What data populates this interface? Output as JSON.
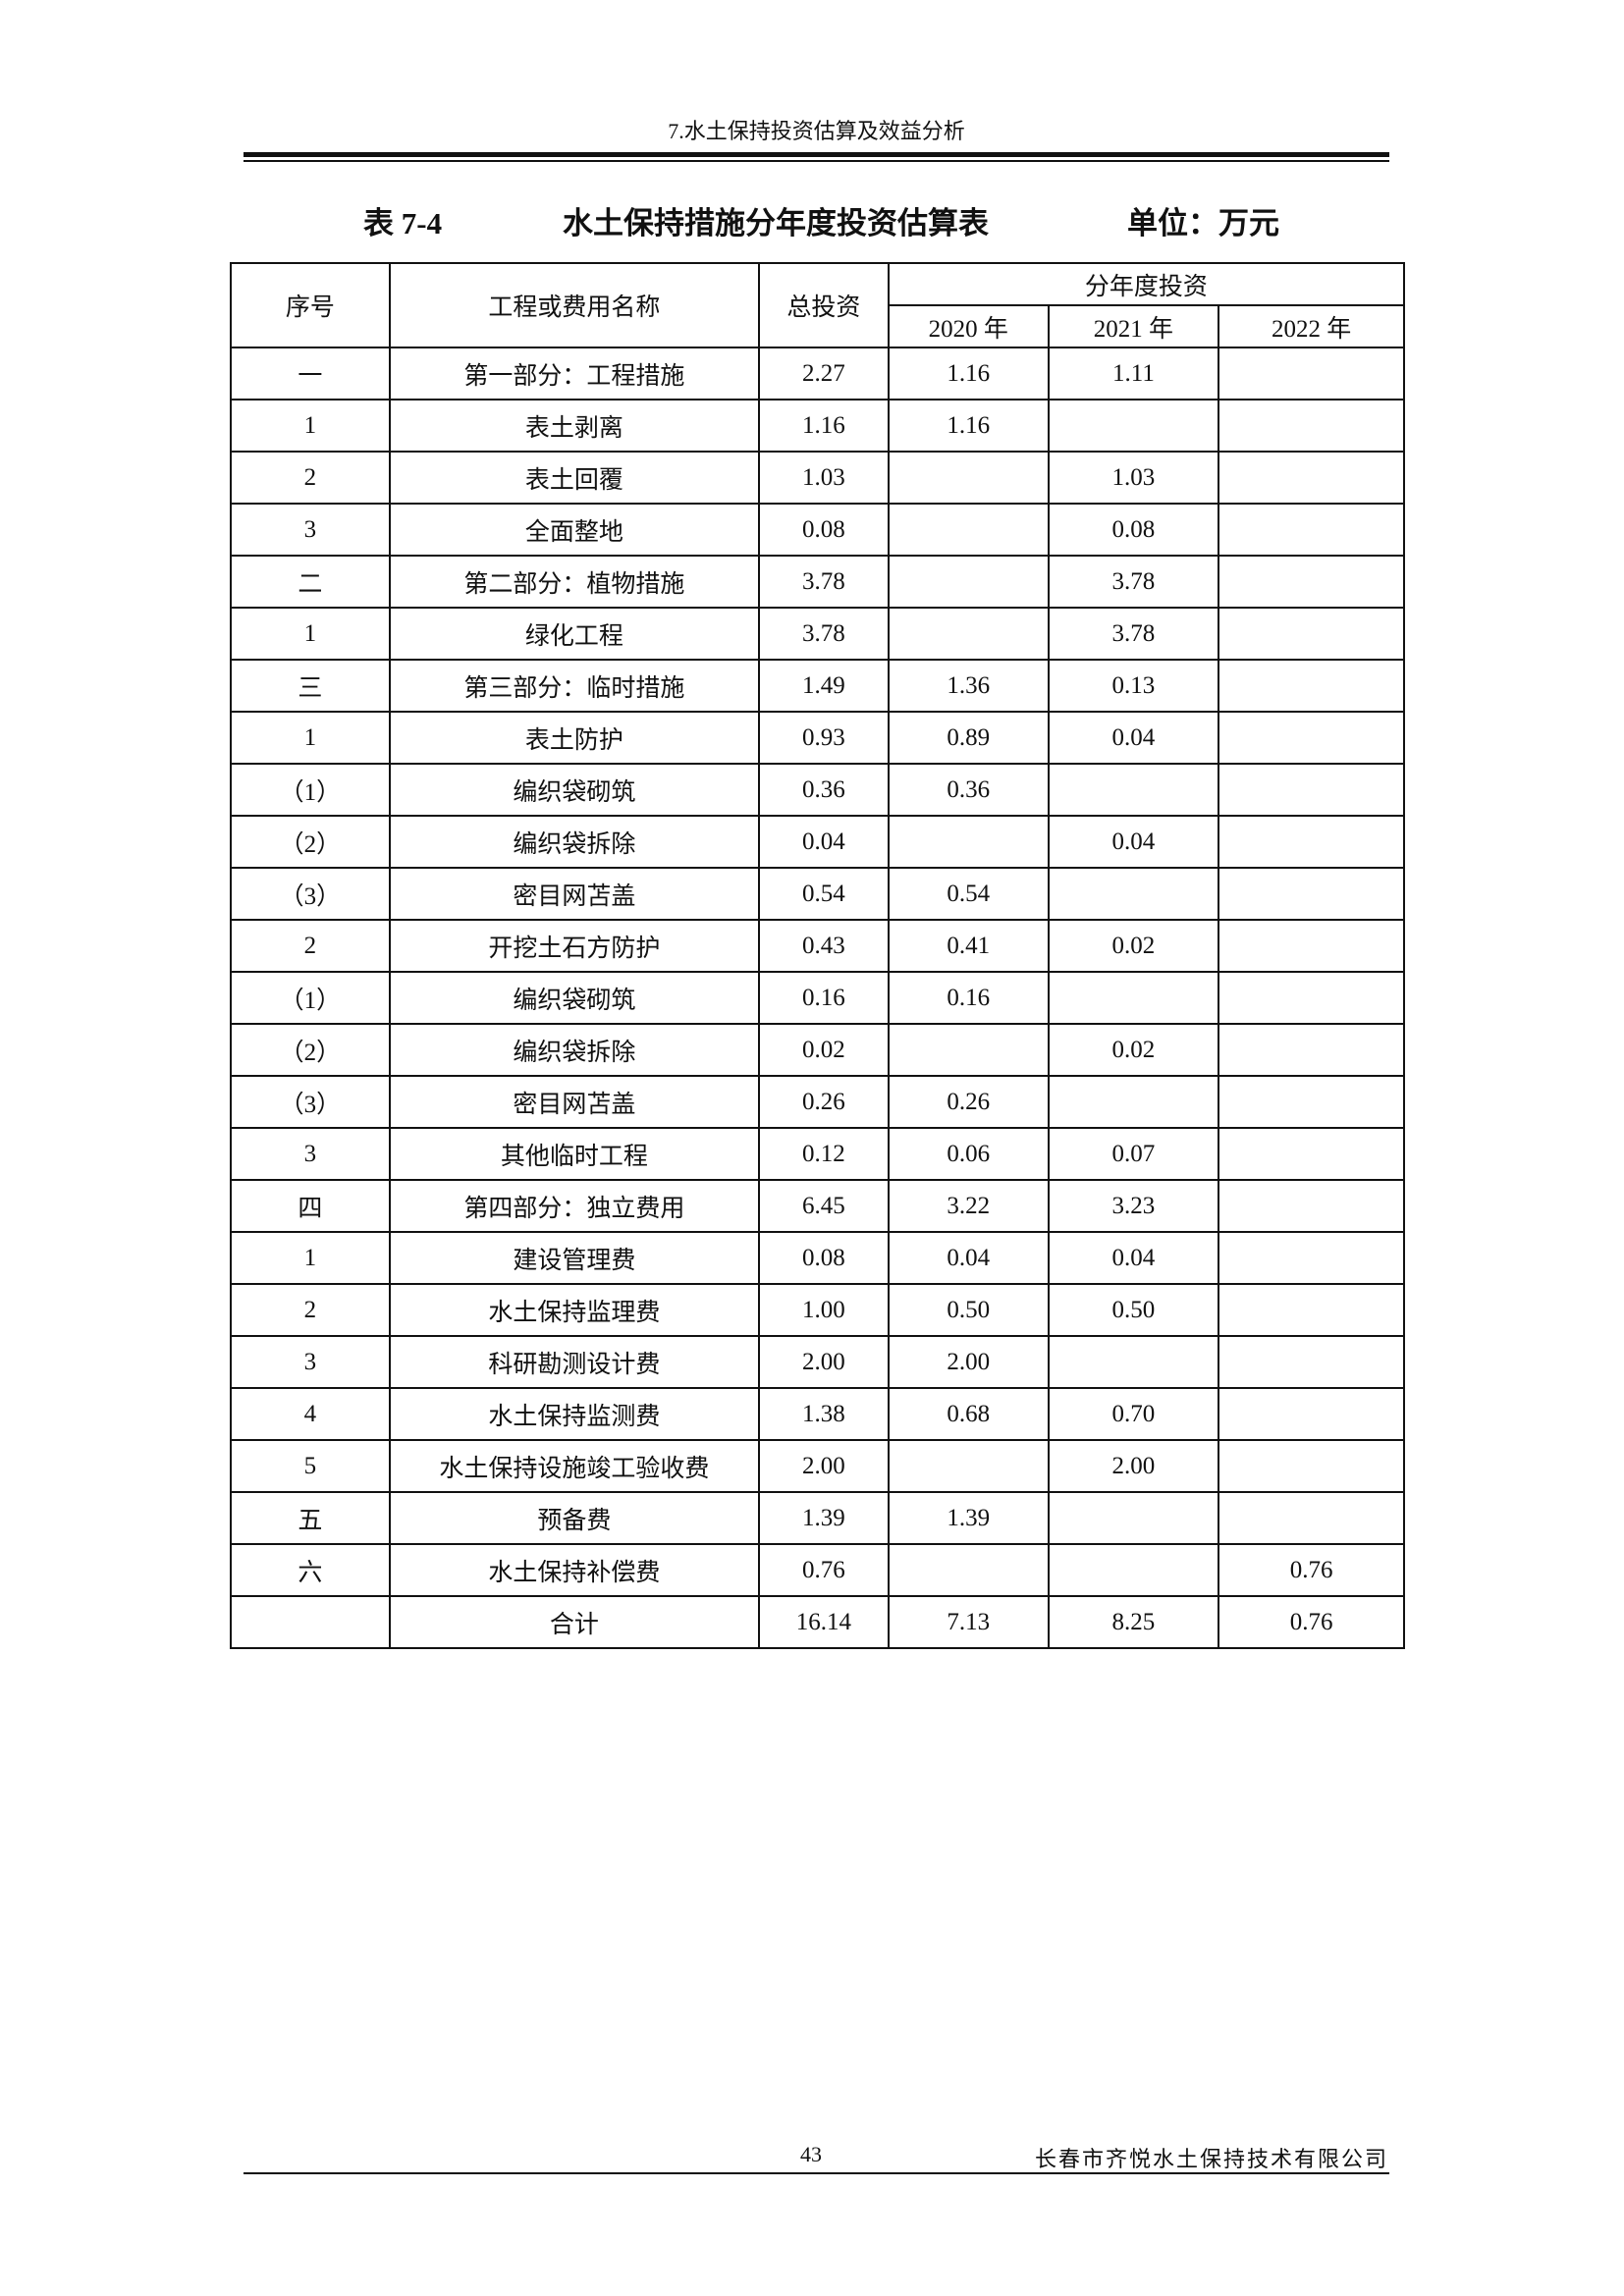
{
  "header": {
    "chapter": "7.水土保持投资估算及效益分析"
  },
  "title": {
    "number": "表 7-4",
    "name": "水土保持措施分年度投资估算表",
    "unit": "单位：万元"
  },
  "table": {
    "headers": {
      "seq": "序号",
      "name": "工程或费用名称",
      "total": "总投资",
      "group": "分年度投资",
      "y2020": "2020 年",
      "y2021": "2021 年",
      "y2022": "2022 年"
    },
    "rows": [
      [
        "一",
        "第一部分：工程措施",
        "2.27",
        "1.16",
        "1.11",
        ""
      ],
      [
        "1",
        "表土剥离",
        "1.16",
        "1.16",
        "",
        ""
      ],
      [
        "2",
        "表土回覆",
        "1.03",
        "",
        "1.03",
        ""
      ],
      [
        "3",
        "全面整地",
        "0.08",
        "",
        "0.08",
        ""
      ],
      [
        "二",
        "第二部分：植物措施",
        "3.78",
        "",
        "3.78",
        ""
      ],
      [
        "1",
        "绿化工程",
        "3.78",
        "",
        "3.78",
        ""
      ],
      [
        "三",
        "第三部分：临时措施",
        "1.49",
        "1.36",
        "0.13",
        ""
      ],
      [
        "1",
        "表土防护",
        "0.93",
        "0.89",
        "0.04",
        ""
      ],
      [
        "（1）",
        "编织袋砌筑",
        "0.36",
        "0.36",
        "",
        ""
      ],
      [
        "（2）",
        "编织袋拆除",
        "0.04",
        "",
        "0.04",
        ""
      ],
      [
        "（3）",
        "密目网苫盖",
        "0.54",
        "0.54",
        "",
        ""
      ],
      [
        "2",
        "开挖土石方防护",
        "0.43",
        "0.41",
        "0.02",
        ""
      ],
      [
        "（1）",
        "编织袋砌筑",
        "0.16",
        "0.16",
        "",
        ""
      ],
      [
        "（2）",
        "编织袋拆除",
        "0.02",
        "",
        "0.02",
        ""
      ],
      [
        "（3）",
        "密目网苫盖",
        "0.26",
        "0.26",
        "",
        ""
      ],
      [
        "3",
        "其他临时工程",
        "0.12",
        "0.06",
        "0.07",
        ""
      ],
      [
        "四",
        "第四部分：独立费用",
        "6.45",
        "3.22",
        "3.23",
        ""
      ],
      [
        "1",
        "建设管理费",
        "0.08",
        "0.04",
        "0.04",
        ""
      ],
      [
        "2",
        "水土保持监理费",
        "1.00",
        "0.50",
        "0.50",
        ""
      ],
      [
        "3",
        "科研勘测设计费",
        "2.00",
        "2.00",
        "",
        ""
      ],
      [
        "4",
        "水土保持监测费",
        "1.38",
        "0.68",
        "0.70",
        ""
      ],
      [
        "5",
        "水土保持设施竣工验收费",
        "2.00",
        "",
        "2.00",
        ""
      ],
      [
        "五",
        "预备费",
        "1.39",
        "1.39",
        "",
        ""
      ],
      [
        "六",
        "水土保持补偿费",
        "0.76",
        "",
        "",
        "0.76"
      ],
      [
        "",
        "合计",
        "16.14",
        "7.13",
        "8.25",
        "0.76"
      ]
    ]
  },
  "footer": {
    "page": "43",
    "company": "长春市齐悦水土保持技术有限公司"
  }
}
